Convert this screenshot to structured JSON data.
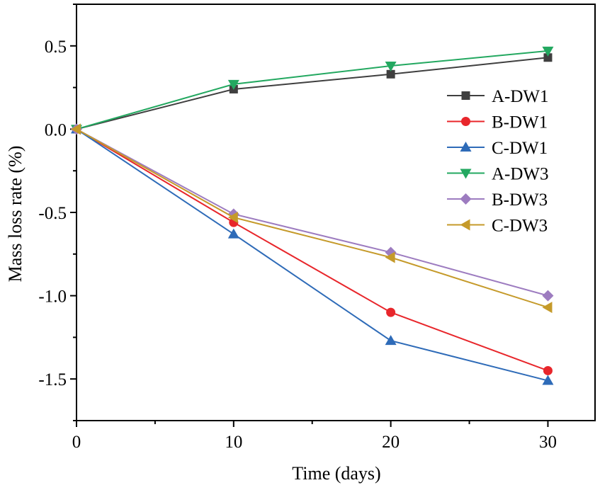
{
  "chart_data": {
    "type": "line",
    "title": "",
    "xlabel": "Time  (days)",
    "ylabel": "Mass loss rate (%)",
    "xlim": [
      0,
      33
    ],
    "ylim": [
      -1.75,
      0.75
    ],
    "xticks": [
      0,
      10,
      20,
      30
    ],
    "xtick_labels": [
      "0",
      "10",
      "20",
      "30"
    ],
    "yticks": [
      0.5,
      0.0,
      -0.5,
      -1.0,
      -1.5
    ],
    "ytick_labels": [
      "0.5",
      "0.0",
      "-0.5",
      "-1.0",
      "-1.5"
    ],
    "grid": false,
    "legend_position": "right",
    "x": [
      0,
      10,
      20,
      30
    ],
    "series": [
      {
        "name": "A-DW1",
        "color": "#3f3f3f",
        "marker": "square",
        "values": [
          0,
          0.24,
          0.33,
          0.43
        ]
      },
      {
        "name": "B-DW1",
        "color": "#e8262b",
        "marker": "circle",
        "values": [
          0,
          -0.56,
          -1.1,
          -1.45
        ]
      },
      {
        "name": "C-DW1",
        "color": "#2e6bb8",
        "marker": "triangle-up",
        "values": [
          0,
          -0.63,
          -1.27,
          -1.51
        ]
      },
      {
        "name": "A-DW3",
        "color": "#23a860",
        "marker": "triangle-down",
        "values": [
          0,
          0.27,
          0.38,
          0.47
        ]
      },
      {
        "name": "B-DW3",
        "color": "#9d7cc0",
        "marker": "diamond",
        "values": [
          0,
          -0.51,
          -0.74,
          -1.0
        ]
      },
      {
        "name": "C-DW3",
        "color": "#c59a2a",
        "marker": "triangle-left",
        "values": [
          0,
          -0.53,
          -0.77,
          -1.07
        ]
      }
    ]
  }
}
